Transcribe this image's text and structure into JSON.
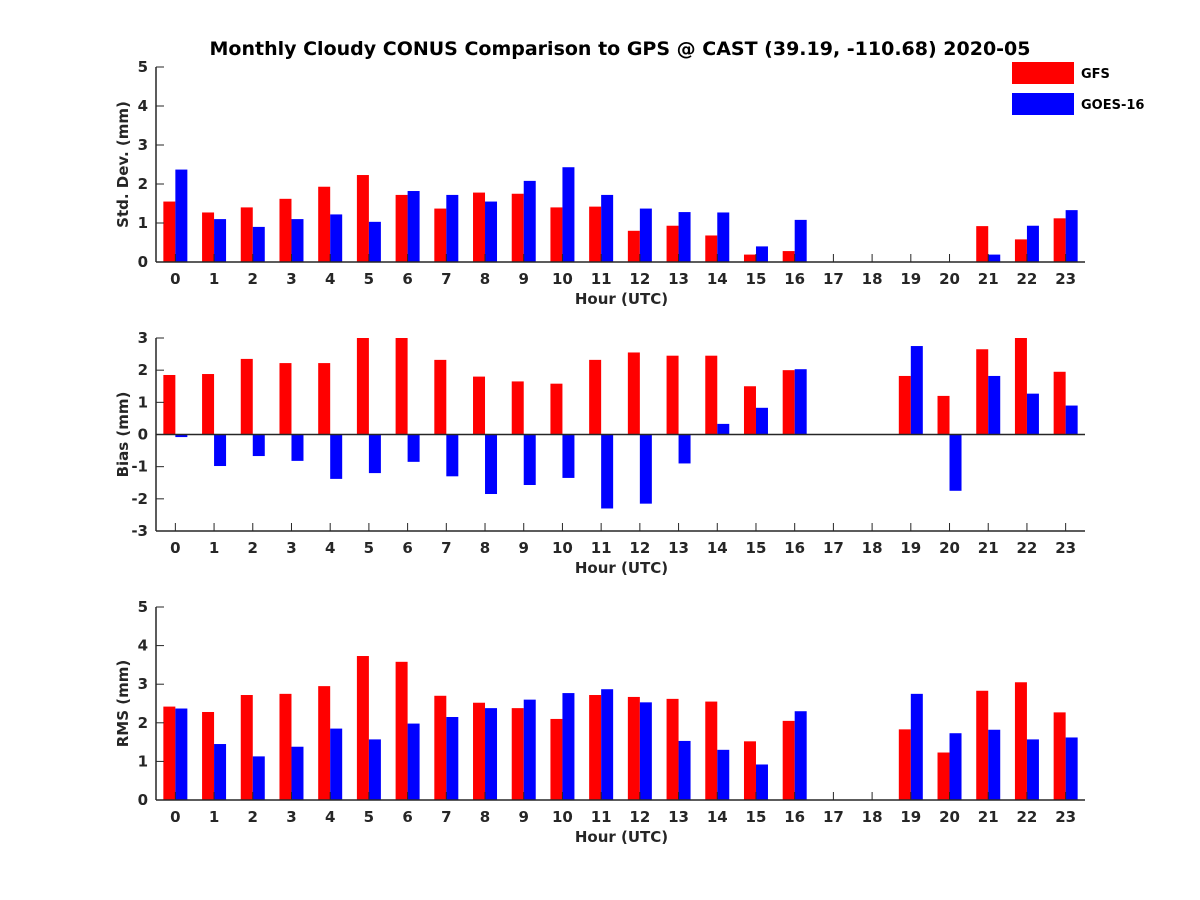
{
  "figure": {
    "title": "Monthly Cloudy CONUS Comparison to GPS @ CAST (39.19, -110.68) 2020-05"
  },
  "legend": {
    "placement": "top-right",
    "items": [
      {
        "label": "GFS",
        "color": "#ff0000"
      },
      {
        "label": "GOES-16",
        "color": "#0000ff"
      }
    ]
  },
  "chart_data": [
    {
      "type": "bar",
      "title": "Monthly Cloudy CONUS Comparison to GPS @ CAST (39.19, -110.68) 2020-05",
      "xlabel": "Hour (UTC)",
      "ylabel": "Std. Dev. (mm)",
      "ylim": [
        0,
        5
      ],
      "yticks": [
        0,
        1,
        2,
        3,
        4,
        5
      ],
      "grid": false,
      "categories": [
        "0",
        "1",
        "2",
        "3",
        "4",
        "5",
        "6",
        "7",
        "8",
        "9",
        "10",
        "11",
        "12",
        "13",
        "14",
        "15",
        "16",
        "17",
        "18",
        "19",
        "20",
        "21",
        "22",
        "23"
      ],
      "series": [
        {
          "name": "GFS",
          "color": "#ff0000",
          "values": [
            1.55,
            1.27,
            1.4,
            1.62,
            1.93,
            2.23,
            1.72,
            1.37,
            1.78,
            1.75,
            1.4,
            1.42,
            0.8,
            0.93,
            0.68,
            0.19,
            0.28,
            0,
            0,
            0,
            0,
            0.92,
            0.58,
            1.12
          ]
        },
        {
          "name": "GOES-16",
          "color": "#0000ff",
          "values": [
            2.37,
            1.1,
            0.9,
            1.1,
            1.22,
            1.03,
            1.82,
            1.72,
            1.55,
            2.08,
            2.43,
            1.72,
            1.37,
            1.28,
            1.27,
            0.4,
            1.08,
            0,
            0,
            0,
            0,
            0.19,
            0.93,
            1.33
          ]
        }
      ]
    },
    {
      "type": "bar",
      "xlabel": "Hour (UTC)",
      "ylabel": "Bias (mm)",
      "ylim": [
        -3,
        3
      ],
      "yticks": [
        -3,
        -2,
        -1,
        0,
        1,
        2,
        3
      ],
      "grid": false,
      "categories": [
        "0",
        "1",
        "2",
        "3",
        "4",
        "5",
        "6",
        "7",
        "8",
        "9",
        "10",
        "11",
        "12",
        "13",
        "14",
        "15",
        "16",
        "17",
        "18",
        "19",
        "20",
        "21",
        "22",
        "23"
      ],
      "series": [
        {
          "name": "GFS",
          "color": "#ff0000",
          "values": [
            1.85,
            1.88,
            2.35,
            2.22,
            2.22,
            3.0,
            3.0,
            2.32,
            1.8,
            1.65,
            1.58,
            2.32,
            2.55,
            2.45,
            2.45,
            1.5,
            2.0,
            0,
            0,
            1.82,
            1.2,
            2.65,
            3.0,
            1.95
          ]
        },
        {
          "name": "GOES-16",
          "color": "#0000ff",
          "values": [
            -0.08,
            -0.98,
            -0.67,
            -0.82,
            -1.38,
            -1.2,
            -0.85,
            -1.3,
            -1.85,
            -1.57,
            -1.35,
            -2.3,
            -2.15,
            -0.9,
            0.33,
            0.83,
            2.03,
            0,
            0,
            2.75,
            -1.75,
            1.82,
            1.27,
            0.9
          ]
        }
      ]
    },
    {
      "type": "bar",
      "xlabel": "Hour (UTC)",
      "ylabel": "RMS (mm)",
      "ylim": [
        0,
        5
      ],
      "yticks": [
        0,
        1,
        2,
        3,
        4,
        5
      ],
      "grid": false,
      "categories": [
        "0",
        "1",
        "2",
        "3",
        "4",
        "5",
        "6",
        "7",
        "8",
        "9",
        "10",
        "11",
        "12",
        "13",
        "14",
        "15",
        "16",
        "17",
        "18",
        "19",
        "20",
        "21",
        "22",
        "23"
      ],
      "series": [
        {
          "name": "GFS",
          "color": "#ff0000",
          "values": [
            2.42,
            2.28,
            2.72,
            2.75,
            2.95,
            3.73,
            3.58,
            2.7,
            2.52,
            2.38,
            2.1,
            2.72,
            2.67,
            2.62,
            2.55,
            1.52,
            2.05,
            0,
            0,
            1.83,
            1.23,
            2.83,
            3.05,
            2.27
          ]
        },
        {
          "name": "GOES-16",
          "color": "#0000ff",
          "values": [
            2.37,
            1.45,
            1.13,
            1.38,
            1.85,
            1.57,
            1.98,
            2.15,
            2.38,
            2.6,
            2.77,
            2.87,
            2.53,
            1.53,
            1.3,
            0.92,
            2.3,
            0,
            0,
            2.75,
            1.73,
            1.82,
            1.57,
            1.62
          ]
        }
      ]
    }
  ]
}
